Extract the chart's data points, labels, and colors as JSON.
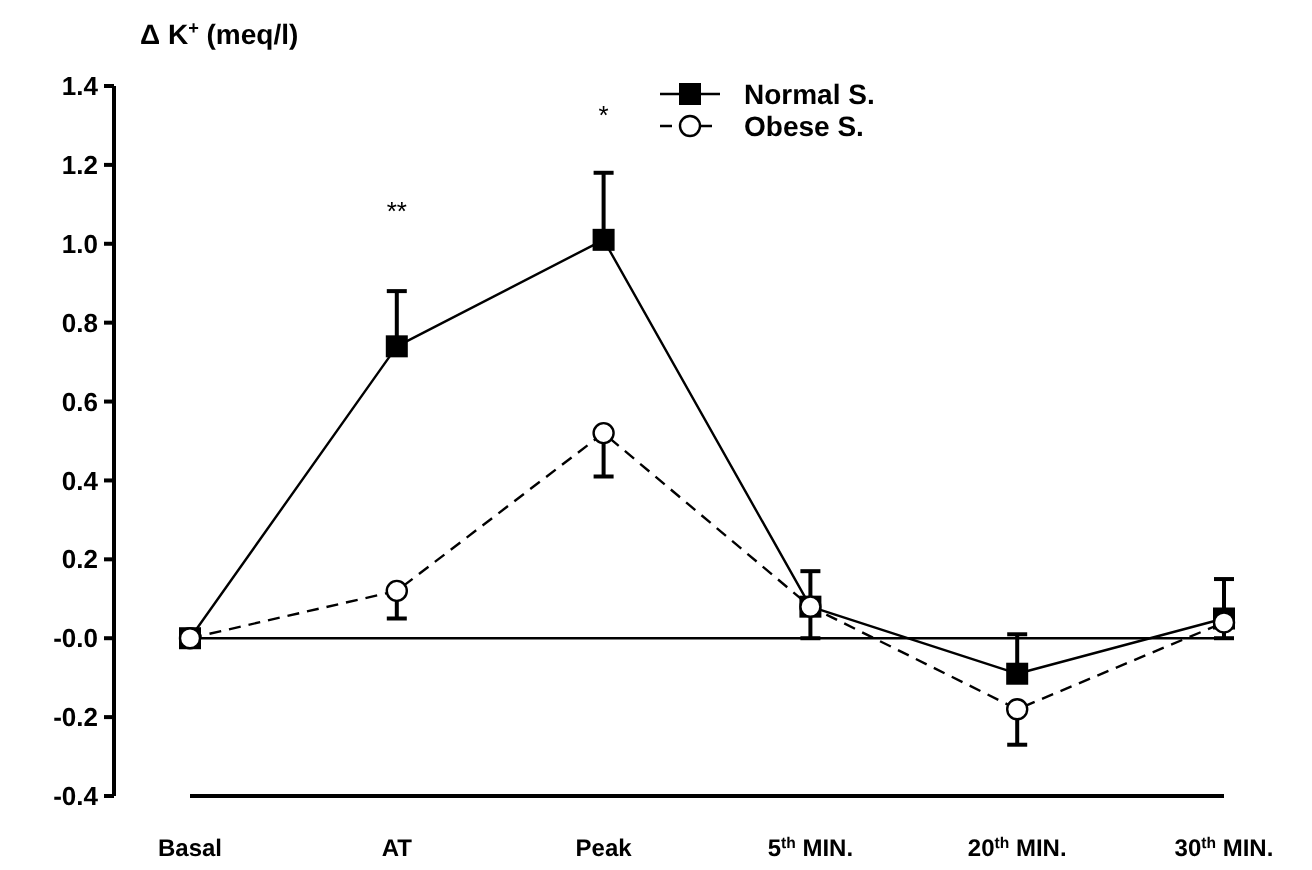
{
  "chart_data": {
    "type": "line",
    "ylabel": "Δ K$^{+}$ (meq/l)",
    "categories": [
      "Basal",
      "AT",
      "Peak",
      "5$^{th}$ MIN.",
      "20$^{th}$ MIN.",
      "30$^{th}$ MIN."
    ],
    "ylim": [
      -0.4,
      1.4
    ],
    "yticks": [
      -0.4,
      -0.2,
      {
        "value": 0,
        "label": "-0.0"
      },
      0.2,
      0.4,
      0.6,
      0.8,
      {
        "value": 1,
        "label": "1.0"
      },
      1.2,
      1.4
    ],
    "series": [
      {
        "name": "Normal S.",
        "color": "#000000",
        "marker": "square",
        "line_style": "solid",
        "values": [
          0,
          0.74,
          1.01,
          0.08,
          -0.09,
          0.05
        ],
        "errors": [
          null,
          [
            0.74,
            0.88
          ],
          [
            1.01,
            1.18
          ],
          [
            0.0,
            0.17
          ],
          [
            -0.09,
            0.01
          ],
          [
            0.0,
            0.15
          ]
        ]
      },
      {
        "name": "Obese S.",
        "color": "#000000",
        "marker": "circle",
        "line_style": "dashed",
        "values": [
          0,
          0.12,
          0.52,
          0.08,
          -0.18,
          0.04
        ],
        "errors": [
          null,
          [
            0.05,
            0.12
          ],
          [
            0.41,
            0.52
          ],
          null,
          [
            -0.27,
            -0.18
          ],
          null
        ]
      }
    ],
    "ref_lines": [
      {
        "axis": "y",
        "value": 0,
        "color": "#000000"
      }
    ],
    "annotations": [
      "**",
      "*"
    ],
    "legend": "top right",
    "grid": false
  }
}
